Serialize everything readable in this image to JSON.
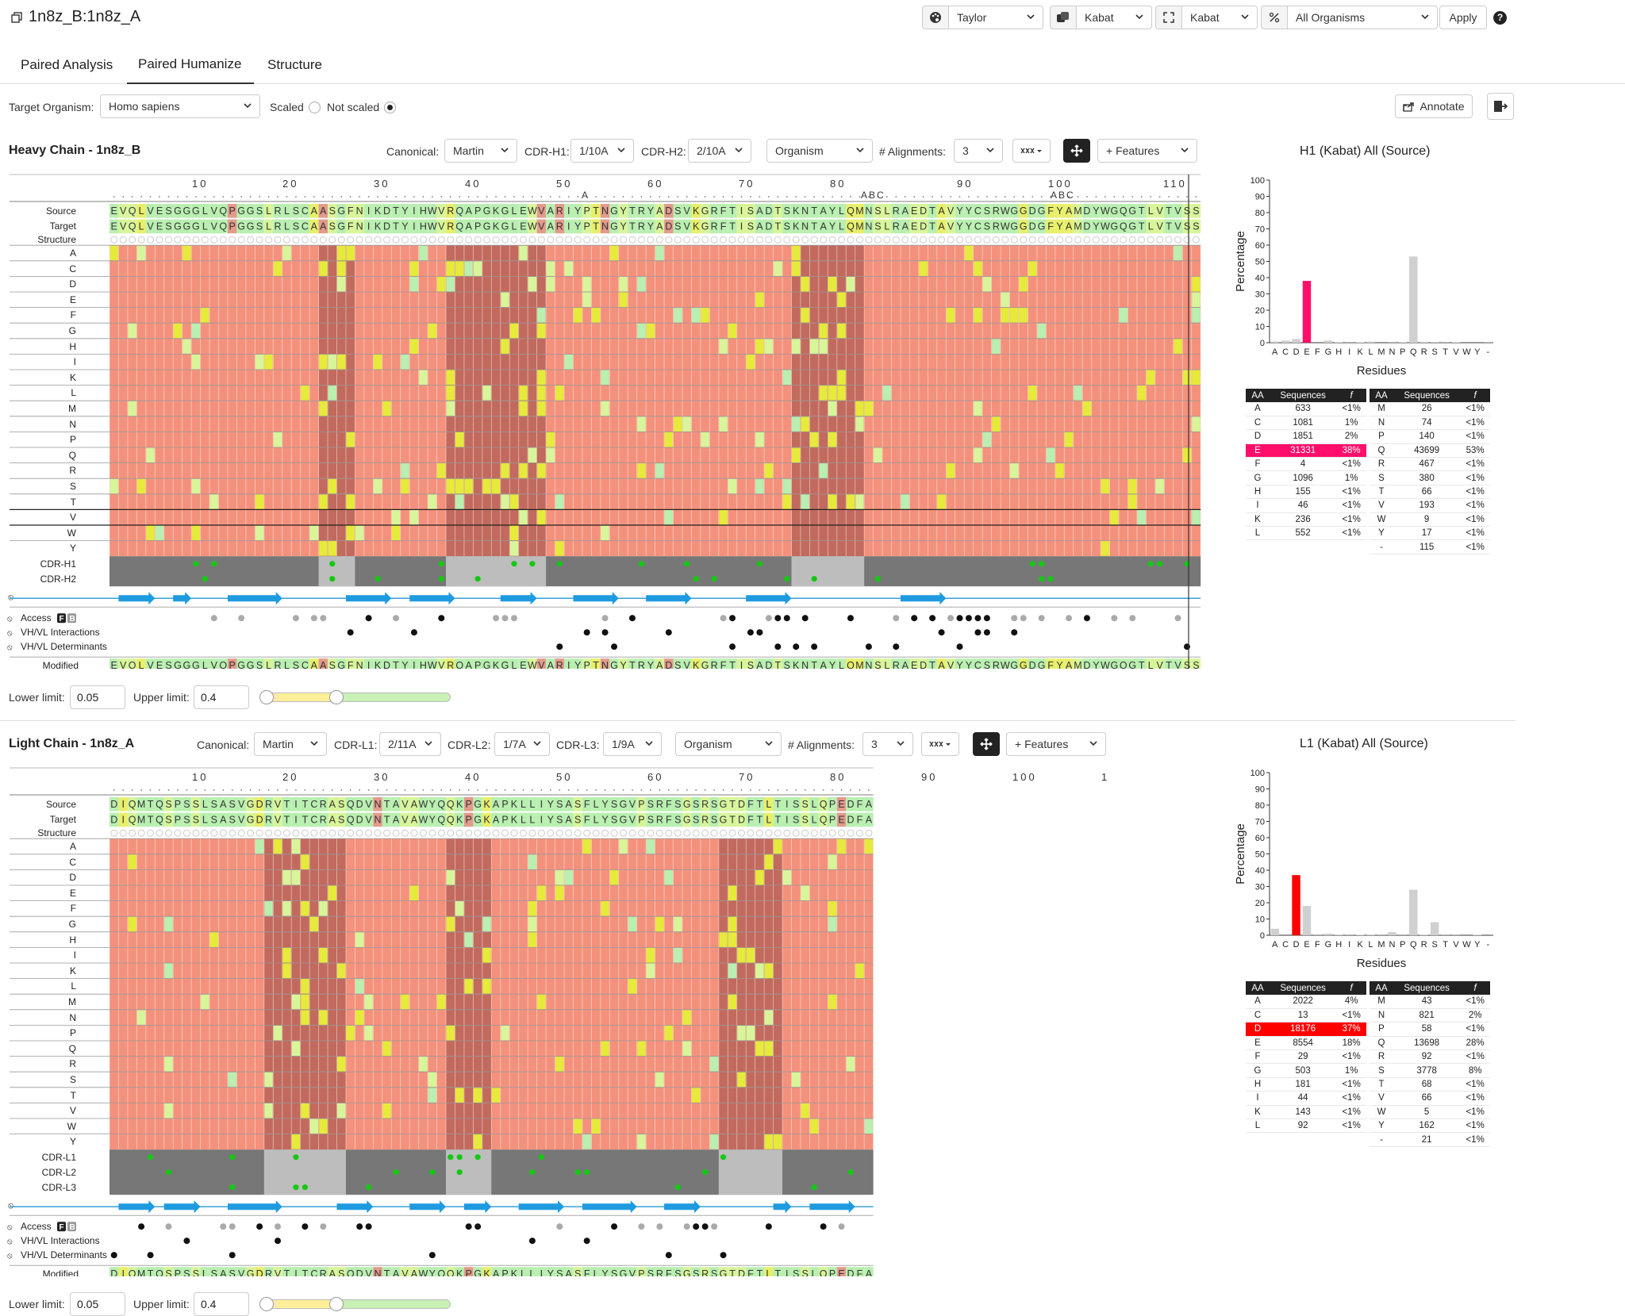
{
  "app": {
    "title": "1n8z_B:1n8z_A",
    "toolbar": {
      "color_scheme": "Taylor",
      "numbering_1": "Kabat",
      "numbering_2": "Kabat",
      "organism": "All Organisms",
      "apply": "Apply",
      "help": "?"
    },
    "tabs": [
      "Paired Analysis",
      "Paired Humanize",
      "Structure"
    ],
    "active_tab": 1
  },
  "controls": {
    "target_organism_label": "Target Organism:",
    "target_organism": "Homo sapiens",
    "scaled": "Scaled",
    "not_scaled": "Not scaled",
    "annotate": "Annotate"
  },
  "heavy": {
    "title": "Heavy Chain - 1n8z_B",
    "canonical_label": "Canonical:",
    "canonical": "Martin",
    "cdr1_label": "CDR-H1:",
    "cdr1": "1/10A",
    "cdr2_label": "CDR-H2:",
    "cdr2": "2/10A",
    "organism": "Organism",
    "alignments_label": "# Alignments:",
    "alignments": "3",
    "features": "+ Features",
    "ruler": [
      "10",
      "20",
      "30",
      "40",
      "50",
      "60",
      "70",
      "80",
      "90",
      "100",
      "110"
    ],
    "insertions": [
      "A",
      "ABC",
      "ABC"
    ],
    "source_seq": "EVQLVESGGGLVQPGGSLRLSCAASGFNIKDTYIHWVRQAPGKGLEWVARIYPTNGYTRYADSVKGRFTISADTSKNTAYLQMNSLRAEDTAVYYCSRWGGDGFYAMDYWGQGTLVTVSS",
    "row_labels": [
      "Source",
      "Target",
      "Structure",
      "A",
      "C",
      "D",
      "E",
      "F",
      "G",
      "H",
      "I",
      "K",
      "L",
      "M",
      "N",
      "P",
      "Q",
      "R",
      "S",
      "T",
      "V",
      "W",
      "Y",
      "CDR-H1",
      "CDR-H2"
    ],
    "feature_labels": [
      "Access",
      "VH/VL Interactions",
      "VH/VL Determinants",
      "Modified"
    ],
    "lower_label": "Lower limit:",
    "lower": "0.05",
    "upper_label": "Upper limit:",
    "upper": "0.4",
    "chart": {
      "title": "H1 (Kabat) All (Source)",
      "xlabel": "Residues",
      "ylabel": "Percentage",
      "highlight_color": "#ff0f6a"
    },
    "table_headers": [
      "AA",
      "Sequences",
      "f"
    ],
    "table_left": [
      [
        "A",
        "633",
        "<1%"
      ],
      [
        "C",
        "1081",
        "1%"
      ],
      [
        "D",
        "1851",
        "2%"
      ],
      [
        "E",
        "31331",
        "38%"
      ],
      [
        "F",
        "4",
        "<1%"
      ],
      [
        "G",
        "1096",
        "1%"
      ],
      [
        "H",
        "155",
        "<1%"
      ],
      [
        "I",
        "46",
        "<1%"
      ],
      [
        "K",
        "236",
        "<1%"
      ],
      [
        "L",
        "552",
        "<1%"
      ]
    ],
    "table_right": [
      [
        "M",
        "26",
        "<1%"
      ],
      [
        "N",
        "74",
        "<1%"
      ],
      [
        "P",
        "140",
        "<1%"
      ],
      [
        "Q",
        "43699",
        "53%"
      ],
      [
        "R",
        "467",
        "<1%"
      ],
      [
        "S",
        "380",
        "<1%"
      ],
      [
        "T",
        "66",
        "<1%"
      ],
      [
        "V",
        "193",
        "<1%"
      ],
      [
        "W",
        "9",
        "<1%"
      ],
      [
        "Y",
        "17",
        "<1%"
      ],
      [
        "-",
        "115",
        "<1%"
      ]
    ]
  },
  "light": {
    "title": "Light Chain - 1n8z_A",
    "canonical_label": "Canonical:",
    "canonical": "Martin",
    "cdr1_label": "CDR-L1:",
    "cdr1": "2/11A",
    "cdr2_label": "CDR-L2:",
    "cdr2": "1/7A",
    "cdr3_label": "CDR-L3:",
    "cdr3": "1/9A",
    "organism": "Organism",
    "alignments_label": "# Alignments:",
    "alignments": "3",
    "features": "+ Features",
    "ruler": [
      "10",
      "20",
      "30",
      "40",
      "50",
      "60",
      "70",
      "80",
      "90",
      "100",
      "1"
    ],
    "source_seq": "DIQMTQSPSSLSASVGDRVTITCRASQDVNTAVAWYQQKPGKAPKLLIYSASFLYSGVPSRFSGSRSGTDFTLTISSLQPEDFATYYCQQHYTTPPTFGQGTKVEIKRTV",
    "row_labels": [
      "Source",
      "Target",
      "Structure",
      "A",
      "C",
      "D",
      "E",
      "F",
      "G",
      "H",
      "I",
      "K",
      "L",
      "M",
      "N",
      "P",
      "Q",
      "R",
      "S",
      "T",
      "V",
      "W",
      "Y",
      "CDR-L1",
      "CDR-L2",
      "CDR-L3"
    ],
    "feature_labels": [
      "Access",
      "VH/VL Interactions",
      "VH/VL Determinants",
      "Modified"
    ],
    "lower_label": "Lower limit:",
    "lower": "0.05",
    "upper_label": "Upper limit:",
    "upper": "0.4",
    "chart": {
      "title": "L1 (Kabat) All (Source)",
      "xlabel": "Residues",
      "ylabel": "Percentage",
      "highlight_color": "#ff0000"
    },
    "table_headers": [
      "AA",
      "Sequences",
      "f"
    ],
    "table_left": [
      [
        "A",
        "2022",
        "4%"
      ],
      [
        "C",
        "13",
        "<1%"
      ],
      [
        "D",
        "18176",
        "37%"
      ],
      [
        "E",
        "8554",
        "18%"
      ],
      [
        "F",
        "29",
        "<1%"
      ],
      [
        "G",
        "503",
        "1%"
      ],
      [
        "H",
        "181",
        "<1%"
      ],
      [
        "I",
        "44",
        "<1%"
      ],
      [
        "K",
        "143",
        "<1%"
      ],
      [
        "L",
        "92",
        "<1%"
      ]
    ],
    "table_right": [
      [
        "M",
        "43",
        "<1%"
      ],
      [
        "N",
        "821",
        "2%"
      ],
      [
        "P",
        "58",
        "<1%"
      ],
      [
        "Q",
        "13698",
        "28%"
      ],
      [
        "R",
        "92",
        "<1%"
      ],
      [
        "S",
        "3778",
        "8%"
      ],
      [
        "T",
        "68",
        "<1%"
      ],
      [
        "V",
        "66",
        "<1%"
      ],
      [
        "W",
        "5",
        "<1%"
      ],
      [
        "Y",
        "162",
        "<1%"
      ],
      [
        "-",
        "21",
        "<1%"
      ]
    ]
  },
  "chart_data": [
    {
      "type": "bar",
      "title": "H1 (Kabat) All (Source)",
      "xlabel": "Residues",
      "ylabel": "Percentage",
      "ylim": [
        0,
        100
      ],
      "yticks": [
        "0",
        "10",
        "20",
        "30",
        "40",
        "50",
        "60",
        "70",
        "80",
        "90",
        "100"
      ],
      "categories": [
        "A",
        "C",
        "D",
        "E",
        "F",
        "G",
        "H",
        "I",
        "K",
        "L",
        "M",
        "N",
        "P",
        "Q",
        "R",
        "S",
        "T",
        "V",
        "W",
        "Y",
        "-"
      ],
      "values": [
        0.8,
        1.3,
        2.3,
        38,
        0,
        1.3,
        0.2,
        0.1,
        0.3,
        0.7,
        0,
        0.1,
        0.2,
        53,
        0.6,
        0.5,
        0.1,
        0.2,
        0,
        0,
        0.1
      ],
      "highlight": "E"
    },
    {
      "type": "bar",
      "title": "L1 (Kabat) All (Source)",
      "xlabel": "Residues",
      "ylabel": "Percentage",
      "ylim": [
        0,
        100
      ],
      "yticks": [
        "0",
        "10",
        "20",
        "30",
        "40",
        "50",
        "60",
        "70",
        "80",
        "90",
        "100"
      ],
      "categories": [
        "A",
        "C",
        "D",
        "E",
        "F",
        "G",
        "H",
        "I",
        "K",
        "L",
        "M",
        "N",
        "P",
        "Q",
        "R",
        "S",
        "T",
        "V",
        "W",
        "Y",
        "-"
      ],
      "values": [
        4,
        0,
        37,
        18,
        0.1,
        1,
        0.4,
        0.1,
        0.3,
        0.2,
        0.1,
        2,
        0.1,
        28,
        0.2,
        8,
        0.1,
        0.1,
        0,
        0.3,
        0
      ],
      "highlight": "D"
    }
  ]
}
